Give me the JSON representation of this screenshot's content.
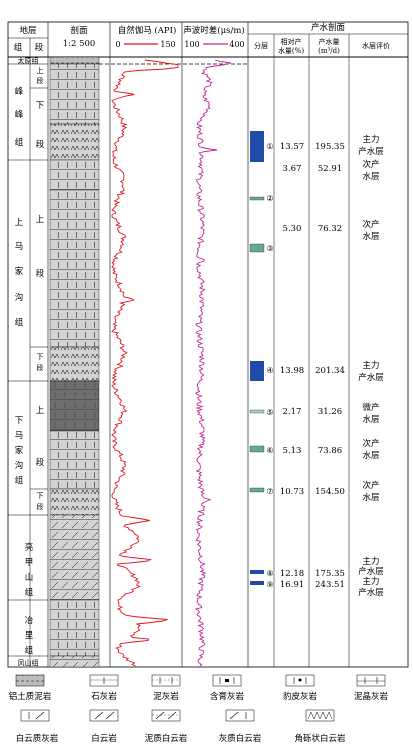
{
  "headers": {
    "stratum": "地层",
    "group": "组",
    "member": "段",
    "section_title": "剖面",
    "section_scale": "1:2 500",
    "gr_title": "自然伽马 (API)",
    "gr_min": "0",
    "gr_max": "150",
    "ac_title": "声波时差(μs/m)",
    "ac_min": "100",
    "ac_max": "400",
    "prod_title": "产水剖面",
    "layer": "分层",
    "rel_prod_1": "相对产",
    "rel_prod_2": "水量(%)",
    "water_1": "产水量",
    "water_2": "(m³/d)",
    "eval": "水层评价"
  },
  "groups": [
    {
      "id": "taiyuan",
      "label": "太原组"
    },
    {
      "id": "fengfeng",
      "chars": [
        "峰",
        "峰",
        "组"
      ]
    },
    {
      "id": "shangmajiagou",
      "chars": [
        "上",
        "马",
        "家",
        "沟",
        "组"
      ]
    },
    {
      "id": "xiamajiagou",
      "chars": [
        "下",
        "马",
        "家",
        "沟",
        "组"
      ]
    },
    {
      "id": "liangjiashan",
      "chars": [
        "亮",
        "甲",
        "山",
        "组"
      ]
    },
    {
      "id": "yeli",
      "chars": [
        "冶",
        "里",
        "组"
      ]
    },
    {
      "id": "fengshan",
      "label": "凤山组"
    }
  ],
  "members": [
    {
      "id": "ff-top",
      "label": "上段"
    },
    {
      "id": "ff-mid",
      "label": "下"
    },
    {
      "id": "ff-low",
      "label": "段"
    },
    {
      "id": "sm-up",
      "label": "上"
    },
    {
      "id": "sm-mid",
      "label": "段"
    },
    {
      "id": "sm-low",
      "label": "下段"
    },
    {
      "id": "xm-up",
      "label": "上"
    },
    {
      "id": "xm-mid",
      "label": "段"
    },
    {
      "id": "xm-low",
      "label": "下段"
    }
  ],
  "layers": [
    {
      "id": "1",
      "num": "①",
      "rel": "13.57",
      "water": "195.35",
      "eval": [
        "主力",
        "产水层"
      ]
    },
    {
      "id": "1b",
      "num": "",
      "rel": "3.67",
      "water": "52.91",
      "eval": [
        "次产",
        "水层"
      ]
    },
    {
      "id": "2",
      "num": "②",
      "rel": "",
      "water": "",
      "eval": []
    },
    {
      "id": "3",
      "num": "③",
      "rel": "5.30",
      "water": "76.32",
      "eval": [
        "次产",
        "水层"
      ]
    },
    {
      "id": "4",
      "num": "④",
      "rel": "13.98",
      "water": "201.34",
      "eval": [
        "主力",
        "产水层"
      ]
    },
    {
      "id": "5",
      "num": "⑤",
      "rel": "2.17",
      "water": "31.26",
      "eval": [
        "微产",
        "水层"
      ]
    },
    {
      "id": "6",
      "num": "⑥",
      "rel": "5.13",
      "water": "73.86",
      "eval": [
        "次产",
        "水层"
      ]
    },
    {
      "id": "7",
      "num": "⑦",
      "rel": "10.73",
      "water": "154.50",
      "eval": [
        "次产",
        "水层"
      ]
    },
    {
      "id": "8",
      "num": "⑧",
      "rel": "12.18",
      "water": "175.35",
      "eval": [
        "主力",
        "产水层"
      ]
    },
    {
      "id": "9",
      "num": "⑨",
      "rel": "16.91",
      "water": "243.51",
      "eval": [
        "主力",
        "产水层"
      ]
    }
  ],
  "legend": [
    {
      "id": "bauxite-mudstone",
      "label": "铝土质泥岩"
    },
    {
      "id": "limestone",
      "label": "石灰岩"
    },
    {
      "id": "argillaceous-limestone",
      "label": "泥灰岩"
    },
    {
      "id": "gypsum-limestone",
      "label": "含膏灰岩"
    },
    {
      "id": "leopard-limestone",
      "label": "豹皮灰岩"
    },
    {
      "id": "micritic-limestone",
      "label": "泥晶灰岩"
    },
    {
      "id": "dolomitic-limestone",
      "label": "白云质灰岩"
    },
    {
      "id": "dolomite",
      "label": "白云岩"
    },
    {
      "id": "argillaceous-dolomite",
      "label": "泥质白云岩"
    },
    {
      "id": "calcareous-dolomite",
      "label": "灰质白云岩"
    },
    {
      "id": "breccia-dolomite",
      "label": "角砾状白云岩"
    }
  ],
  "colors": {
    "gr_curve": "#e0141e",
    "ac_curve": "#c0259a",
    "main_layer": "#1f4aa8",
    "minor_layer": "#6aa89a",
    "rock_light": "#d3d3d3",
    "rock_dark": "#6e6e6e"
  }
}
